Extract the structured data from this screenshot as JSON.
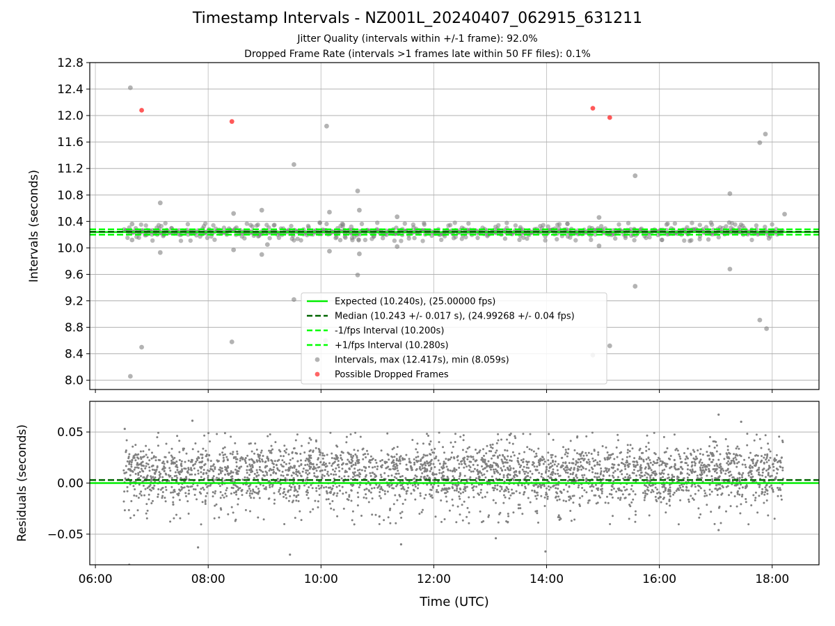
{
  "title": "Timestamp Intervals - NZ001L_20240407_062915_631211",
  "subtitle_line1": "Jitter Quality (intervals within +/-1 frame): 92.0%",
  "subtitle_line2": "Dropped Frame Rate (intervals >1 frames late within 50 FF files): 0.1%",
  "colors": {
    "expected": "#00ee00",
    "median": "#006400",
    "fps_band": "#00ff00",
    "intervals": "#808080",
    "dropped": "#ff0000",
    "residuals": "#808080",
    "grid": "#b0b0b0"
  },
  "chart_data": [
    {
      "type": "scatter",
      "panel": "top",
      "ylabel": "Intervals (seconds)",
      "ylim": [
        7.86,
        12.8
      ],
      "xlim_hours": [
        5.9,
        18.83
      ],
      "yticks": [
        8.0,
        8.4,
        8.8,
        9.2,
        9.6,
        10.0,
        10.4,
        10.8,
        11.2,
        11.6,
        12.0,
        12.4,
        12.8
      ],
      "ytick_labels": [
        "8.0",
        "8.4",
        "8.8",
        "9.2",
        "9.6",
        "10.0",
        "10.4",
        "10.8",
        "11.2",
        "11.6",
        "12.0",
        "12.4",
        "12.8"
      ],
      "grid": true,
      "legend_position": "lower-center",
      "legend": [
        {
          "label": "Expected (10.240s), (25.00000 fps)",
          "style": "solid",
          "color": "#00ee00"
        },
        {
          "label": "Median (10.243 +/- 0.017 s), (24.99268 +/- 0.04 fps)",
          "style": "dashed",
          "color": "#006400"
        },
        {
          "label": "-1/fps Interval (10.200s)",
          "style": "dashed",
          "color": "#00ff00"
        },
        {
          "label": "+1/fps Interval (10.280s)",
          "style": "dashed",
          "color": "#00ff00"
        },
        {
          "label": "Intervals, max (12.417s), min (8.059s)",
          "style": "marker",
          "color": "#808080"
        },
        {
          "label": "Possible Dropped Frames",
          "style": "marker",
          "color": "#ff0000"
        }
      ],
      "reference_lines": {
        "expected": 10.24,
        "median": 10.243,
        "minus_fps": 10.2,
        "plus_fps": 10.28
      },
      "outliers": [
        [
          6.62,
          12.42
        ],
        [
          6.62,
          8.06
        ],
        [
          6.65,
          10.36
        ],
        [
          6.65,
          10.12
        ],
        [
          6.82,
          8.5
        ],
        [
          7.15,
          10.68
        ],
        [
          7.15,
          9.93
        ],
        [
          8.45,
          10.52
        ],
        [
          8.45,
          9.97
        ],
        [
          8.42,
          8.58
        ],
        [
          8.95,
          10.57
        ],
        [
          8.95,
          9.9
        ],
        [
          9.05,
          10.05
        ],
        [
          9.52,
          11.26
        ],
        [
          9.52,
          9.22
        ],
        [
          10.1,
          11.84
        ],
        [
          10.15,
          10.54
        ],
        [
          10.15,
          9.95
        ],
        [
          10.08,
          8.6
        ],
        [
          10.65,
          10.86
        ],
        [
          10.68,
          10.57
        ],
        [
          10.68,
          9.91
        ],
        [
          10.65,
          9.59
        ],
        [
          11.35,
          10.47
        ],
        [
          11.35,
          10.02
        ],
        [
          14.93,
          10.46
        ],
        [
          14.93,
          10.03
        ],
        [
          15.12,
          8.52
        ],
        [
          15.57,
          11.09
        ],
        [
          15.57,
          9.42
        ],
        [
          17.25,
          10.82
        ],
        [
          17.25,
          9.68
        ],
        [
          17.78,
          11.59
        ],
        [
          17.88,
          11.72
        ],
        [
          17.78,
          8.91
        ],
        [
          17.9,
          8.78
        ],
        [
          18.22,
          10.51
        ],
        [
          14.82,
          8.38
        ]
      ],
      "dropped_frames": [
        [
          6.82,
          12.08
        ],
        [
          8.42,
          11.91
        ],
        [
          14.82,
          12.11
        ],
        [
          15.12,
          11.97
        ]
      ]
    },
    {
      "type": "scatter",
      "panel": "bottom",
      "xlabel": "Time (UTC)",
      "ylabel": "Residuals (seconds)",
      "ylim": [
        -0.08,
        0.08
      ],
      "xlim_hours": [
        5.9,
        18.83
      ],
      "xticks_hours": [
        6,
        8,
        10,
        12,
        14,
        16,
        18
      ],
      "xtick_labels": [
        "06:00",
        "08:00",
        "10:00",
        "12:00",
        "14:00",
        "16:00",
        "18:00"
      ],
      "yticks": [
        -0.05,
        0.0,
        0.05
      ],
      "ytick_labels": [
        "−0.05",
        "0.00",
        "0.05"
      ],
      "grid": true,
      "zero_line": 0.0,
      "median_residual": 0.003,
      "residual_range": [
        -0.07,
        0.066
      ],
      "time_range_hours": [
        6.5,
        18.2
      ],
      "residual_outliers": [
        [
          6.52,
          0.053
        ],
        [
          6.6,
          -0.08
        ],
        [
          7.72,
          0.061
        ],
        [
          7.82,
          -0.063
        ],
        [
          7.38,
          -0.021
        ],
        [
          9.45,
          -0.07
        ],
        [
          11.42,
          -0.06
        ],
        [
          13.1,
          -0.054
        ],
        [
          13.98,
          -0.067
        ],
        [
          14.25,
          -0.035
        ],
        [
          17.05,
          -0.046
        ],
        [
          17.05,
          0.067
        ],
        [
          17.45,
          0.06
        ]
      ]
    }
  ]
}
